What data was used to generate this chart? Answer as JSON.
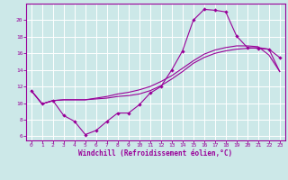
{
  "xlabel": "Windchill (Refroidissement éolien,°C)",
  "background_color": "#cce8e8",
  "grid_color": "#ffffff",
  "line_color": "#990099",
  "xlim": [
    -0.5,
    23.5
  ],
  "ylim": [
    5.5,
    22
  ],
  "xticks": [
    0,
    1,
    2,
    3,
    4,
    5,
    6,
    7,
    8,
    9,
    10,
    11,
    12,
    13,
    14,
    15,
    16,
    17,
    18,
    19,
    20,
    21,
    22,
    23
  ],
  "yticks": [
    6,
    8,
    10,
    12,
    14,
    16,
    18,
    20
  ],
  "series1_x": [
    0,
    1,
    2,
    3,
    4,
    5,
    6,
    7,
    8,
    9,
    10,
    11,
    12,
    13,
    14,
    15,
    16,
    17,
    18,
    19,
    20,
    21,
    22,
    23
  ],
  "series1_y": [
    11.5,
    9.9,
    10.3,
    8.5,
    7.8,
    6.2,
    6.7,
    7.8,
    8.8,
    8.8,
    9.8,
    11.2,
    12.0,
    14.0,
    16.3,
    20.0,
    21.3,
    21.2,
    21.0,
    18.1,
    16.7,
    16.6,
    16.5,
    15.5
  ],
  "series2_x": [
    0,
    1,
    2,
    3,
    4,
    5,
    6,
    7,
    8,
    9,
    10,
    11,
    12,
    13,
    14,
    15,
    16,
    17,
    18,
    19,
    20,
    21,
    22,
    23
  ],
  "series2_y": [
    11.5,
    9.9,
    10.3,
    10.4,
    10.4,
    10.4,
    10.5,
    10.6,
    10.8,
    10.9,
    11.1,
    11.5,
    12.1,
    12.9,
    13.8,
    14.8,
    15.5,
    16.0,
    16.3,
    16.5,
    16.6,
    16.7,
    16.5,
    13.8
  ],
  "series3_x": [
    0,
    1,
    2,
    3,
    4,
    5,
    6,
    7,
    8,
    9,
    10,
    11,
    12,
    13,
    14,
    15,
    16,
    17,
    18,
    19,
    20,
    21,
    22,
    23
  ],
  "series3_y": [
    11.5,
    9.9,
    10.3,
    10.4,
    10.4,
    10.4,
    10.6,
    10.8,
    11.1,
    11.3,
    11.6,
    12.0,
    12.6,
    13.3,
    14.2,
    15.1,
    15.9,
    16.4,
    16.7,
    16.9,
    16.9,
    16.8,
    15.8,
    13.8
  ]
}
